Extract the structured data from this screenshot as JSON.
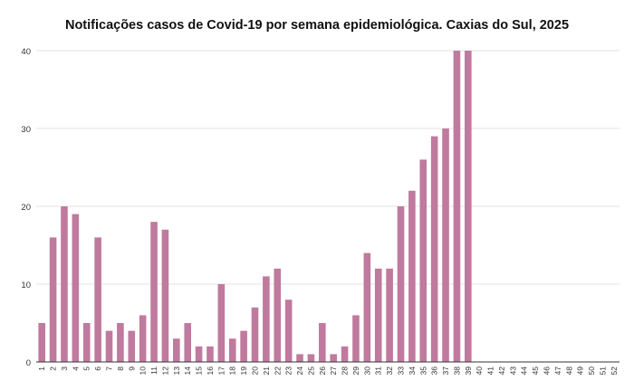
{
  "chart_data": {
    "type": "bar",
    "title": "Notificações casos de Covid-19 por semana epidemiológica. Caxias do Sul, 2025",
    "xlabel": "",
    "ylabel": "",
    "ylim": [
      0,
      40
    ],
    "yticks": [
      0,
      10,
      20,
      30,
      40
    ],
    "grid": true,
    "bar_color": "#c07a9e",
    "categories": [
      "1",
      "2",
      "3",
      "4",
      "5",
      "6",
      "7",
      "8",
      "9",
      "10",
      "11",
      "12",
      "13",
      "14",
      "15",
      "16",
      "17",
      "18",
      "19",
      "20",
      "21",
      "22",
      "23",
      "24",
      "25",
      "26",
      "27",
      "28",
      "29",
      "30",
      "31",
      "32",
      "33",
      "34",
      "35",
      "36",
      "37",
      "38",
      "39",
      "40",
      "41",
      "42",
      "43",
      "44",
      "45",
      "46",
      "47",
      "48",
      "49",
      "50",
      "51",
      "52"
    ],
    "values": [
      5,
      16,
      20,
      19,
      5,
      16,
      4,
      5,
      4,
      6,
      18,
      17,
      3,
      5,
      2,
      2,
      10,
      3,
      4,
      7,
      11,
      12,
      8,
      1,
      1,
      5,
      1,
      2,
      6,
      14,
      12,
      12,
      20,
      22,
      26,
      29,
      30,
      40,
      40,
      0,
      0,
      0,
      0,
      0,
      0,
      0,
      0,
      0,
      0,
      0,
      0,
      0
    ]
  }
}
